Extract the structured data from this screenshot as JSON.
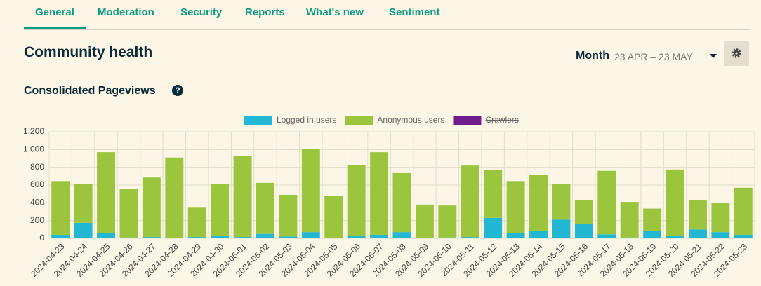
{
  "nav": {
    "tabs": [
      "General",
      "Moderation",
      "Security",
      "Reports",
      "What's new",
      "Sentiment"
    ],
    "active": 0
  },
  "header": {
    "title": "Community health",
    "period": "Month",
    "range": "23 APR – 23 MAY"
  },
  "chart_data": {
    "type": "stacked_bar",
    "title": "Consolidated Pageviews",
    "categories": [
      "2024-04-23",
      "2024-04-24",
      "2024-04-25",
      "2024-04-26",
      "2024-04-27",
      "2024-04-28",
      "2024-04-29",
      "2024-04-30",
      "2024-05-01",
      "2024-05-02",
      "2024-05-03",
      "2024-05-04",
      "2024-05-05",
      "2024-05-06",
      "2024-05-07",
      "2024-05-08",
      "2024-05-09",
      "2024-05-10",
      "2024-05-11",
      "2024-05-12",
      "2024-05-13",
      "2024-05-14",
      "2024-05-15",
      "2024-05-16",
      "2024-05-17",
      "2024-05-18",
      "2024-05-19",
      "2024-05-20",
      "2024-05-21",
      "2024-05-22",
      "2024-05-23"
    ],
    "series": [
      {
        "name": "Logged in users",
        "color": "#22b8d4",
        "values": [
          40,
          175,
          60,
          10,
          15,
          5,
          15,
          25,
          15,
          50,
          20,
          70,
          5,
          30,
          40,
          70,
          5,
          10,
          15,
          230,
          60,
          85,
          210,
          165,
          45,
          10,
          85,
          25,
          100,
          70,
          40
        ]
      },
      {
        "name": "Anonymous users",
        "color": "#9bc53d",
        "values": [
          605,
          435,
          910,
          545,
          670,
          905,
          330,
          590,
          910,
          575,
          470,
          935,
          470,
          795,
          930,
          665,
          375,
          360,
          805,
          540,
          585,
          630,
          405,
          265,
          715,
          400,
          250,
          750,
          330,
          325,
          530
        ]
      },
      {
        "name": "Crawlers",
        "color": "#721d8d",
        "hidden": true
      }
    ],
    "ylim": [
      0,
      1200
    ],
    "yticks": [
      0,
      200,
      400,
      600,
      800,
      {
        "value": 1000,
        "label": "1,000"
      },
      {
        "value": 1200,
        "label": "1,200"
      }
    ],
    "grid": true
  }
}
